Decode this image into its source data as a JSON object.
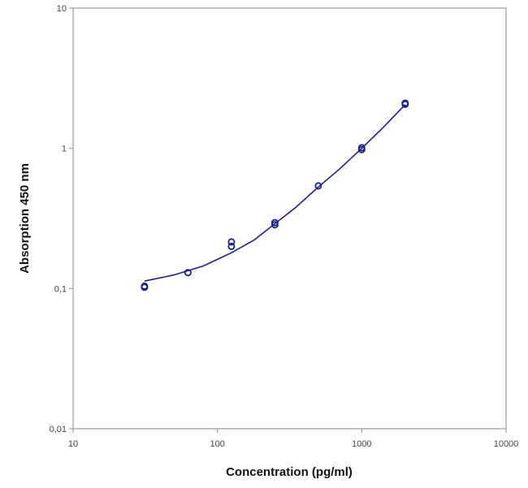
{
  "chart_data": {
    "type": "scatter",
    "title": "",
    "xlabel": "Concentration (pg/ml)",
    "ylabel": "Absorption 450 nm",
    "x_scale": "log",
    "y_scale": "log",
    "xlim": [
      10,
      10000
    ],
    "ylim": [
      0.01,
      10
    ],
    "x_ticks": [
      10,
      100,
      1000,
      10000
    ],
    "x_tick_labels": [
      "10",
      "100",
      "1000",
      "10000"
    ],
    "y_ticks": [
      0.01,
      0.1,
      1,
      10
    ],
    "y_tick_labels": [
      "0,01",
      "0,1",
      "1",
      "10"
    ],
    "grid": false,
    "legend": "none",
    "color": "#1c1f8c",
    "points": [
      {
        "x": 31.25,
        "y": 0.102
      },
      {
        "x": 31.25,
        "y": 0.104
      },
      {
        "x": 62.5,
        "y": 0.13
      },
      {
        "x": 125,
        "y": 0.2
      },
      {
        "x": 125,
        "y": 0.215
      },
      {
        "x": 250,
        "y": 0.285
      },
      {
        "x": 250,
        "y": 0.295
      },
      {
        "x": 500,
        "y": 0.54
      },
      {
        "x": 1000,
        "y": 0.98
      },
      {
        "x": 1000,
        "y": 1.01
      },
      {
        "x": 2000,
        "y": 2.06
      },
      {
        "x": 2000,
        "y": 2.1
      }
    ],
    "fit_curve": {
      "x": [
        31.25,
        50,
        80,
        125,
        180,
        250,
        350,
        500,
        700,
        1000,
        1400,
        2000
      ],
      "y": [
        0.113,
        0.125,
        0.145,
        0.18,
        0.222,
        0.29,
        0.38,
        0.53,
        0.71,
        1.0,
        1.4,
        2.05
      ]
    }
  }
}
